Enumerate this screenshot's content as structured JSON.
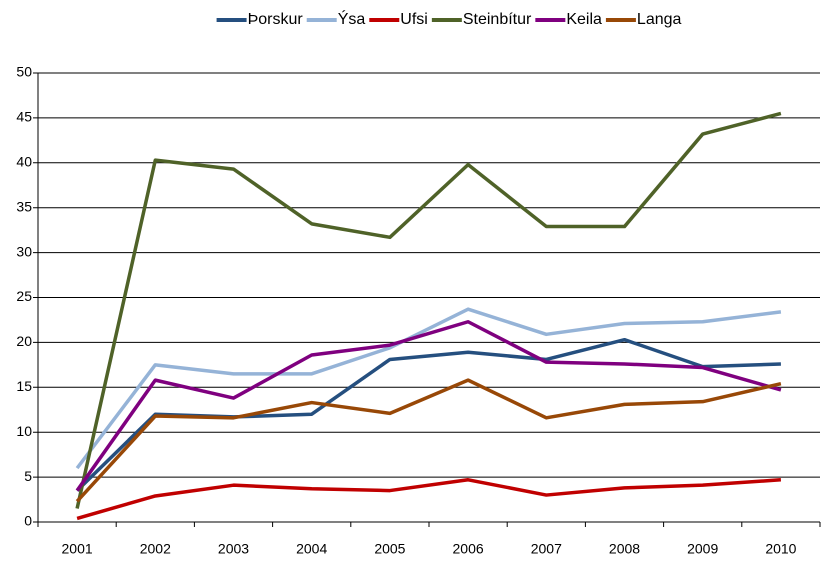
{
  "chart_data": {
    "type": "line",
    "categories": [
      "2001",
      "2002",
      "2003",
      "2004",
      "2005",
      "2006",
      "2007",
      "2008",
      "2009",
      "2010"
    ],
    "series": [
      {
        "name": "Þorskur",
        "color": "#254f7f",
        "values": [
          3.5,
          12.0,
          11.7,
          12.0,
          18.1,
          18.9,
          18.1,
          20.3,
          17.3,
          17.6
        ]
      },
      {
        "name": "Ýsa",
        "color": "#95b3d7",
        "values": [
          6.0,
          17.5,
          16.5,
          16.5,
          19.4,
          23.7,
          20.9,
          22.1,
          22.3,
          23.4
        ]
      },
      {
        "name": "Ufsi",
        "color": "#c00000",
        "values": [
          0.4,
          2.9,
          4.1,
          3.7,
          3.5,
          4.7,
          3.0,
          3.8,
          4.1,
          4.7
        ]
      },
      {
        "name": "Steinbítur",
        "color": "#4f6228",
        "values": [
          1.5,
          40.3,
          39.3,
          33.2,
          31.7,
          39.8,
          32.9,
          32.9,
          43.2,
          45.5
        ]
      },
      {
        "name": "Keila",
        "color": "#7f007f",
        "values": [
          3.5,
          15.8,
          13.8,
          18.6,
          19.7,
          22.3,
          17.8,
          17.6,
          17.2,
          14.7
        ]
      },
      {
        "name": "Langa",
        "color": "#984807",
        "values": [
          2.3,
          11.8,
          11.6,
          13.3,
          12.1,
          15.8,
          11.6,
          13.1,
          13.4,
          15.4
        ]
      }
    ],
    "ylim": [
      0,
      50
    ],
    "yticks": [
      0,
      5,
      10,
      15,
      20,
      25,
      30,
      35,
      40,
      45,
      50
    ],
    "grid": true,
    "legend": "top"
  }
}
